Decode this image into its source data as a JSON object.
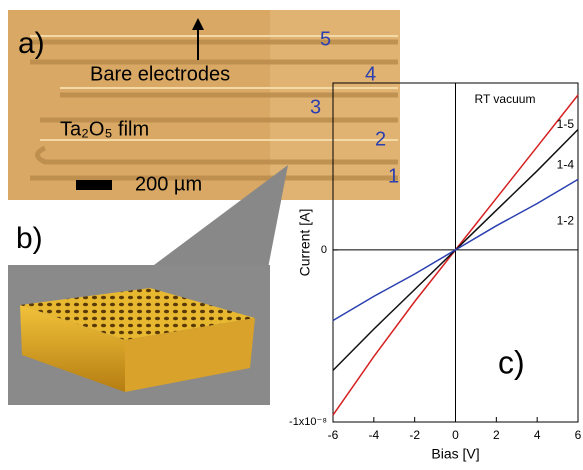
{
  "figure": {
    "panel_labels": [
      "a)",
      "b)"
    ],
    "micrograph": {
      "arrow_label": "Bare electrodes",
      "film_label": "Ta₂O₅ film",
      "scale_label": "200 µm",
      "electrode_numbers": [
        "5",
        "4",
        "3",
        "2",
        "1"
      ]
    }
  },
  "chart_data": {
    "type": "line",
    "panel_label": "c)",
    "annotation": "RT vacuum",
    "x_label": "Bias [V]",
    "y_label": "Current [A]",
    "x": [
      -6,
      -4,
      -2,
      0,
      2,
      4,
      6
    ],
    "series": [
      {
        "name": "1-5",
        "color": "#d62020",
        "values": [
          -9.6e-09,
          -6.2e-09,
          -3e-09,
          0,
          3e-09,
          6e-09,
          9e-09
        ]
      },
      {
        "name": "1-4",
        "color": "#111111",
        "values": [
          -7e-09,
          -4.6e-09,
          -2.3e-09,
          0,
          2.3e-09,
          4.6e-09,
          7e-09
        ]
      },
      {
        "name": "1-2",
        "color": "#2a3fb0",
        "values": [
          -4.1e-09,
          -2.7e-09,
          -1.4e-09,
          0,
          1.4e-09,
          2.7e-09,
          4.1e-09
        ]
      }
    ],
    "xlim": [
      -6,
      6
    ],
    "xticks": [
      -6,
      -4,
      -2,
      0,
      2,
      4,
      6
    ],
    "ylim": [
      -1e-08,
      9.7e-09
    ],
    "yticks": [
      {
        "value": -1e-08,
        "label": "-1x10⁻⁸"
      },
      0
    ]
  }
}
